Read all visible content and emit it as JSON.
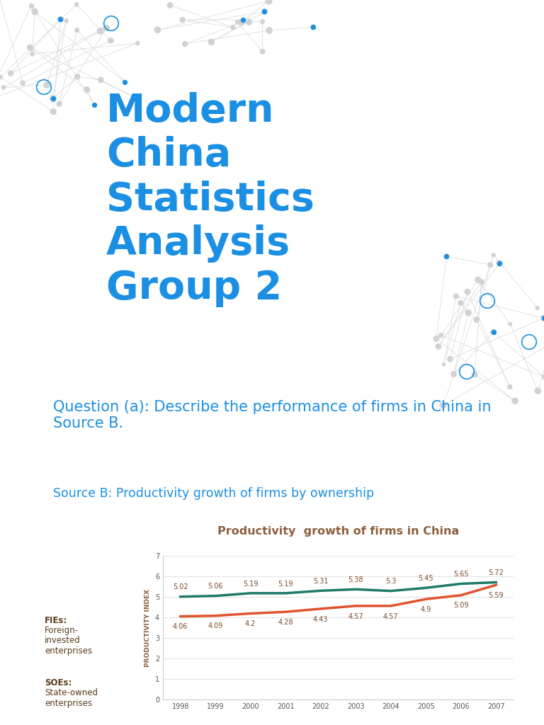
{
  "slide": {
    "title": "Modern\nChina\nStatistics\nAnalysis\nGroup 2",
    "question": "Question (a): Describe the performance of firms in China in Source B.",
    "source": "Source B: Productivity growth of firms by ownership",
    "notes": [
      {
        "term": "FIEs:",
        "definition": "Foreign-invested enterprises"
      },
      {
        "term": "SOEs:",
        "definition": "State-owned enterprises"
      }
    ]
  },
  "chart_data": {
    "type": "line",
    "title": "Productivity  growth of firms in China",
    "y_label": "PRODUCTIVITY INDEX",
    "categories": [
      "1998",
      "1999",
      "2000",
      "2001",
      "2002",
      "2003",
      "2004",
      "2005",
      "2006",
      "2007"
    ],
    "series": [
      {
        "color": "#1e7b6b",
        "values": [
          5.02,
          5.06,
          5.19,
          5.19,
          5.31,
          5.38,
          5.3,
          5.45,
          5.65,
          5.72
        ]
      },
      {
        "color": "#e0532f",
        "values": [
          4.06,
          4.09,
          4.2,
          4.28,
          4.43,
          4.57,
          4.57,
          4.9,
          5.09,
          5.59
        ]
      }
    ],
    "ylim": [
      0,
      7
    ],
    "yticks": [
      0,
      1,
      2,
      3,
      4,
      5,
      6,
      7
    ],
    "grid": true,
    "data_labels": true
  }
}
